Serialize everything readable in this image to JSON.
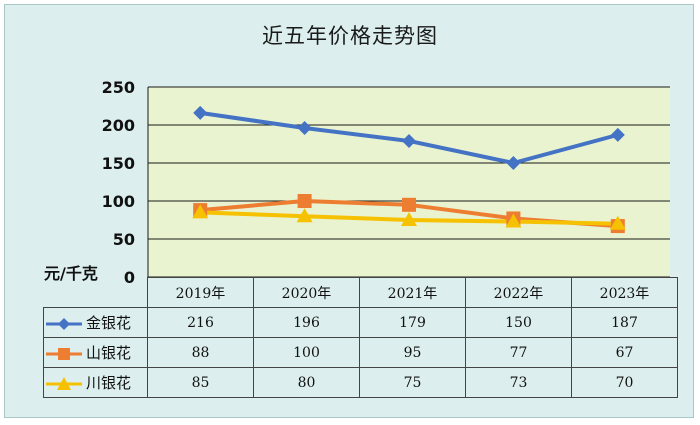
{
  "chart_data": {
    "type": "line",
    "title": "近五年价格走势图",
    "ylabel": "元/千克",
    "ylim": [
      0,
      250
    ],
    "yticks": [
      0,
      50,
      100,
      150,
      200,
      250
    ],
    "grid": true,
    "categories": [
      "2019年",
      "2020年",
      "2021年",
      "2022年",
      "2023年"
    ],
    "series": [
      {
        "name": "金银花",
        "values": [
          216,
          196,
          179,
          150,
          187
        ],
        "color": "#4472c4",
        "marker": "diamond"
      },
      {
        "name": "山银花",
        "values": [
          88,
          100,
          95,
          77,
          67
        ],
        "color": "#ed7d31",
        "marker": "square"
      },
      {
        "name": "川银花",
        "values": [
          85,
          80,
          75,
          73,
          70
        ],
        "color": "#f5c100",
        "marker": "triangle"
      }
    ],
    "legend": "data-table"
  }
}
